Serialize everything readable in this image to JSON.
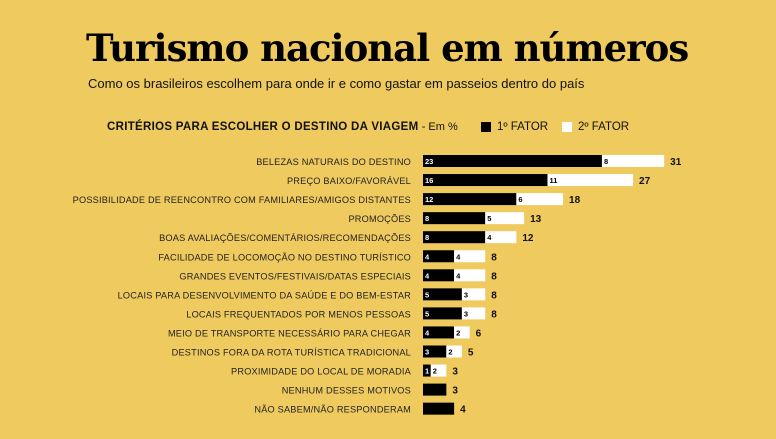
{
  "title": "Turismo nacional em números",
  "subtitle": "Como os brasileiros escolhem para onde ir e como gastar em passeios dentro do país",
  "colors": {
    "background": "#EFCA5F",
    "first_factor": "#000000",
    "second_factor": "#FFFFFF"
  },
  "chart_data": {
    "type": "bar",
    "orientation": "horizontal",
    "stacked": true,
    "title": "CRITÉRIOS PARA ESCOLHER O DESTINO DA VIAGEM",
    "unit": "- Em %",
    "legend_placement": "top-right",
    "grid": false,
    "categories": [
      "BELEZAS NATURAIS DO DESTINO",
      "PREÇO BAIXO/FAVORÁVEL",
      "POSSIBILIDADE DE REENCONTRO COM FAMILIARES/AMIGOS DISTANTES",
      "PROMOÇÕES",
      "BOAS AVALIAÇÕES/COMENTÁRIOS/RECOMENDAÇÕES",
      "FACILIDADE DE LOCOMOÇÃO NO DESTINO TURÍSTICO",
      "GRANDES EVENTOS/FESTIVAIS/DATAS ESPECIAIS",
      "LOCAIS PARA DESENVOLVIMENTO DA SAÚDE E DO BEM-ESTAR",
      "LOCAIS FREQUENTADOS POR MENOS PESSOAS",
      "MEIO DE TRANSPORTE NECESSÁRIO PARA CHEGAR",
      "DESTINOS FORA DA ROTA TURÍSTICA TRADICIONAL",
      "PROXIMIDADE DO LOCAL DE MORADIA",
      "NENHUM DESSES MOTIVOS",
      "NÃO SABEM/NÃO RESPONDERAM"
    ],
    "series": [
      {
        "name": "1º FATOR",
        "values": [
          23,
          16,
          12,
          8,
          8,
          4,
          4,
          5,
          5,
          4,
          3,
          1,
          3,
          4
        ],
        "labeled": [
          true,
          true,
          true,
          true,
          true,
          true,
          true,
          true,
          true,
          true,
          true,
          true,
          false,
          false
        ]
      },
      {
        "name": "2º FATOR",
        "values": [
          8,
          11,
          6,
          5,
          4,
          4,
          4,
          3,
          3,
          2,
          2,
          2,
          0,
          0
        ]
      }
    ],
    "totals": [
      31,
      27,
      18,
      13,
      12,
      8,
      8,
      8,
      8,
      6,
      5,
      3,
      3,
      4
    ]
  }
}
